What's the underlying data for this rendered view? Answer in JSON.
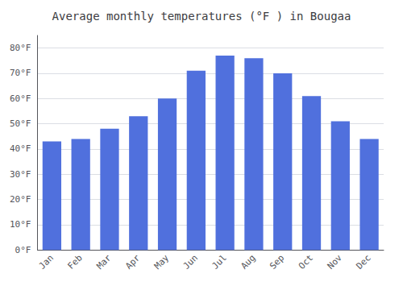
{
  "chart_data": {
    "type": "bar",
    "title": "Average monthly temperatures (°F ) in Bougaa",
    "categories": [
      "Jan",
      "Feb",
      "Mar",
      "Apr",
      "May",
      "Jun",
      "Jul",
      "Aug",
      "Sep",
      "Oct",
      "Nov",
      "Dec"
    ],
    "values": [
      43,
      44,
      48,
      53,
      60,
      71,
      77,
      76,
      70,
      61,
      51,
      44
    ],
    "ylim": [
      0,
      85
    ],
    "yticks": [
      {
        "value": 0,
        "label": "0°F"
      },
      {
        "value": 10,
        "label": "10°F"
      },
      {
        "value": 20,
        "label": "20°F"
      },
      {
        "value": 30,
        "label": "30°F"
      },
      {
        "value": 40,
        "label": "40°F"
      },
      {
        "value": 50,
        "label": "50°F"
      },
      {
        "value": 60,
        "label": "60°F"
      },
      {
        "value": 70,
        "label": "70°F"
      },
      {
        "value": 80,
        "label": "80°F"
      }
    ],
    "grid": true
  }
}
